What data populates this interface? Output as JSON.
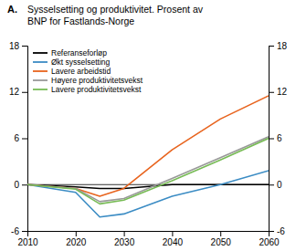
{
  "chart_data": {
    "type": "line",
    "annotations": [
      "A."
    ],
    "title": "Sysselsetting og produktivitet. Prosent av\nBNP for Fastlands-Norge",
    "x": [
      2010,
      2020,
      2025,
      2030,
      2040,
      2050,
      2060
    ],
    "series": [
      {
        "name": "Referanseforløp",
        "color": "#000000",
        "values": [
          0,
          -0.3,
          -0.5,
          -0.5,
          0.0,
          0.0,
          0.0
        ]
      },
      {
        "name": "Økt sysselsetting",
        "color": "#3b8cc4",
        "values": [
          0,
          -1.0,
          -4.2,
          -3.8,
          -1.5,
          0.0,
          1.8
        ]
      },
      {
        "name": "Lavere arbeidstid",
        "color": "#e8641e",
        "values": [
          0,
          -0.5,
          -1.5,
          -0.5,
          4.5,
          8.5,
          11.5
        ]
      },
      {
        "name": "Høyere produktivitetsvekst",
        "color": "#999999",
        "values": [
          0,
          -0.5,
          -2.2,
          -1.8,
          0.8,
          3.5,
          6.2
        ]
      },
      {
        "name": "Lavere produktivitetsvekst",
        "color": "#77bb55",
        "values": [
          0,
          -0.6,
          -2.5,
          -2.0,
          0.5,
          3.2,
          6.0
        ]
      }
    ],
    "xlim": [
      2010,
      2060
    ],
    "xticks": [
      2010,
      2020,
      2030,
      2040,
      2050,
      2060
    ],
    "ylim": [
      -6,
      18
    ],
    "yticks": [
      -6,
      0,
      6,
      12,
      18
    ],
    "y2lim": [
      -6,
      18
    ],
    "y2ticks": [
      -6,
      0,
      6,
      12,
      18
    ],
    "grid": false,
    "legend": "upper left"
  }
}
